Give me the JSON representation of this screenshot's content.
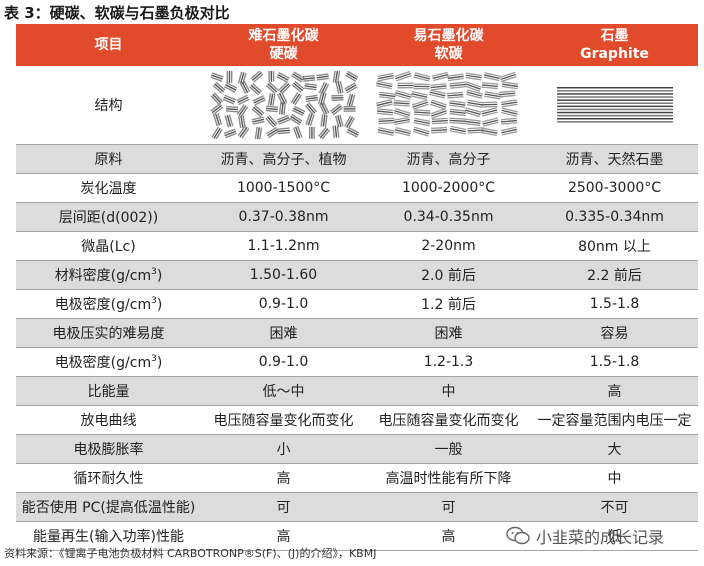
{
  "title": "表 3：硬碳、软碳与石墨负极对比",
  "header": {
    "col0": "项目",
    "col1_line1": "难石墨化碳",
    "col1_line2": "硬碳",
    "col2_line1": "易石墨化碳",
    "col2_line2": "软碳",
    "col3_line1": "石墨",
    "col3_line2": "Graphite"
  },
  "structure_row": {
    "label": "结构"
  },
  "rows": [
    {
      "label": "原料",
      "hard": "沥青、高分子、植物",
      "soft": "沥青、高分子",
      "graphite": "沥青、天然石墨"
    },
    {
      "label": "炭化温度",
      "hard": "1000-1500°C",
      "soft": "1000-2000°C",
      "graphite": "2500-3000°C"
    },
    {
      "label": "层间距(d(002))",
      "hard": "0.37-0.38nm",
      "soft": "0.34-0.35nm",
      "graphite": "0.335-0.34nm"
    },
    {
      "label": "微晶(Lc)",
      "hard": "1.1-1.2nm",
      "soft": "2-20nm",
      "graphite": "80nm 以上"
    },
    {
      "label": "材料密度(g/cm",
      "label_sup": "3",
      "label_tail": ")",
      "hard": "1.50-1.60",
      "soft": "2.0 前后",
      "graphite": "2.2 前后"
    },
    {
      "label": "电极密度(g/cm",
      "label_sup": "3",
      "label_tail": ")",
      "hard": "0.9-1.0",
      "soft": "1.2 前后",
      "graphite": "1.5-1.8"
    },
    {
      "label": "电极压实的难易度",
      "hard": "困难",
      "soft": "困难",
      "graphite": "容易"
    },
    {
      "label": "电极密度(g/cm",
      "label_sup": "3",
      "label_tail": ")",
      "hard": "0.9-1.0",
      "soft": "1.2-1.3",
      "graphite": "1.5-1.8"
    },
    {
      "label": "比能量",
      "hard": "低～中",
      "soft": "中",
      "graphite": "高"
    },
    {
      "label": "放电曲线",
      "hard": "电压随容量变化而变化",
      "soft": "电压随容量变化而变化",
      "graphite": "一定容量范围内电压一定"
    },
    {
      "label": "电极膨胀率",
      "hard": "小",
      "soft": "一般",
      "graphite": "大"
    },
    {
      "label": "循环耐久性",
      "hard": "高",
      "soft": "高温时性能有所下降",
      "graphite": "中"
    },
    {
      "label": "能否使用 PC(提高低温性能)",
      "hard": "可",
      "soft": "可",
      "graphite": "不可"
    },
    {
      "label": "能量再生(输入功率)性能",
      "hard": "高",
      "soft": "高",
      "graphite": "低"
    }
  ],
  "source": "资料来源：《锂离子电池负极材料 CARBOTRONP®S(F)、(J)的介绍》，KBMJ",
  "watermark": "小韭菜的成长记录",
  "colors": {
    "header_bg": "#e14a2a",
    "zebra": "#dcdcdc",
    "rule": "#a3a3a3"
  }
}
